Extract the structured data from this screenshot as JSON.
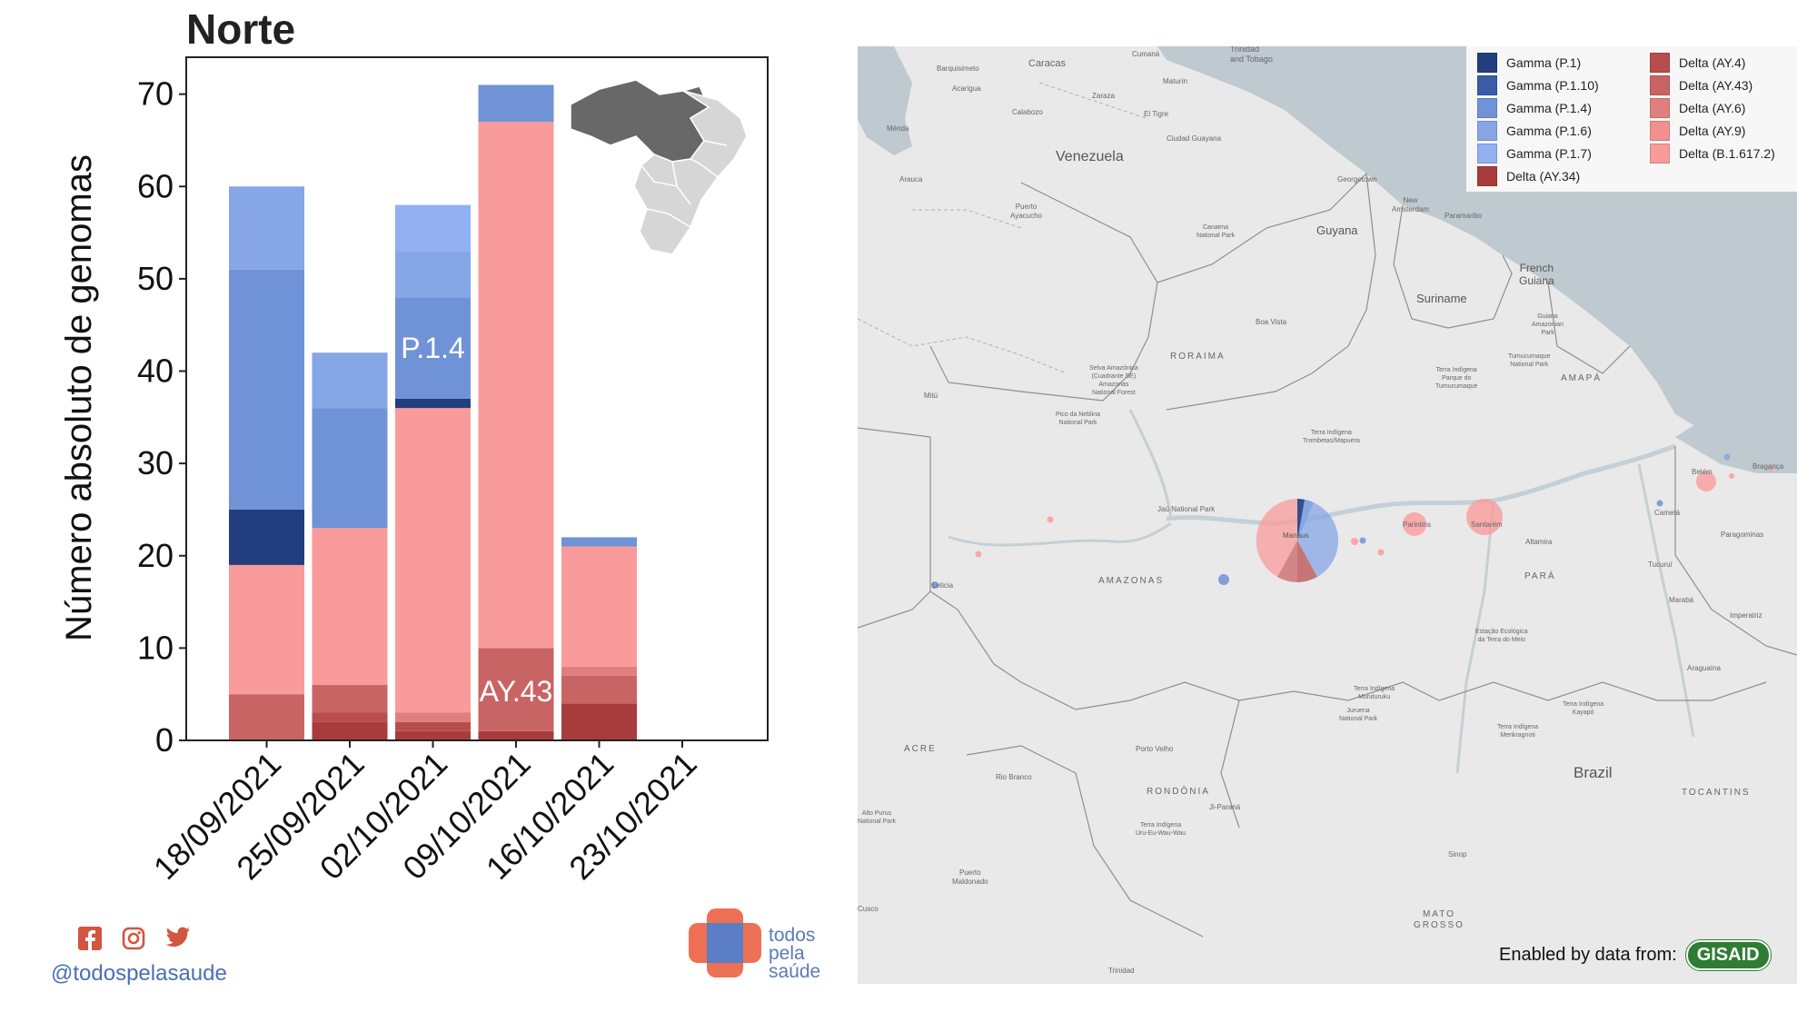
{
  "chart_data": {
    "type": "bar",
    "stacked": true,
    "title": "Norte",
    "ylabel": "Número absoluto de genomas",
    "xlabel": "",
    "ylim": [
      0,
      74
    ],
    "yticks": [
      0,
      10,
      20,
      30,
      40,
      50,
      60,
      70
    ],
    "categories": [
      "18/09/2021",
      "25/09/2021",
      "02/10/2021",
      "09/10/2021",
      "16/10/2021",
      "23/10/2021"
    ],
    "series": [
      {
        "name": "Delta (AY.34)",
        "color": "#a83c3c",
        "values": [
          0,
          2,
          1,
          1,
          4,
          0
        ]
      },
      {
        "name": "Delta (AY.4)",
        "color": "#b84d4d",
        "values": [
          0,
          1,
          1,
          0,
          0,
          0
        ]
      },
      {
        "name": "Delta (AY.43)",
        "color": "#c96464",
        "values": [
          5,
          3,
          0,
          9,
          3,
          0
        ]
      },
      {
        "name": "Delta (AY.6)",
        "color": "#e17f7f",
        "values": [
          0,
          0,
          1,
          0,
          1,
          0
        ]
      },
      {
        "name": "Delta (AY.9)",
        "color": "#f29090",
        "values": [
          0,
          0,
          0,
          0,
          0,
          0
        ]
      },
      {
        "name": "Delta (B.1.617.2)",
        "color": "#fa9b9b",
        "values": [
          14,
          17,
          33,
          57,
          13,
          0
        ]
      },
      {
        "name": "Gamma (P.1)",
        "color": "#233e7e",
        "values": [
          6,
          0,
          1,
          0,
          0,
          0
        ]
      },
      {
        "name": "Gamma (P.1.10)",
        "color": "#3a5ca8",
        "values": [
          0,
          0,
          0,
          0,
          0,
          0
        ]
      },
      {
        "name": "Gamma (P.1.4)",
        "color": "#7092d6",
        "values": [
          26,
          13,
          11,
          4,
          1,
          0
        ]
      },
      {
        "name": "Gamma (P.1.6)",
        "color": "#86a6e5",
        "values": [
          9,
          6,
          5,
          0,
          0,
          0
        ]
      },
      {
        "name": "Gamma (P.1.7)",
        "color": "#92b0f2",
        "values": [
          0,
          0,
          5,
          0,
          0,
          0
        ]
      }
    ],
    "annotations": [
      {
        "text": "P.1.4",
        "category": "02/10/2021",
        "y": 42.5
      },
      {
        "text": "AY.43",
        "category": "09/10/2021",
        "y": 5.3
      }
    ],
    "grid": false
  },
  "footer": {
    "handle": "@todospelasaude",
    "logo_lines": [
      "todos",
      "pela",
      "saúde"
    ],
    "social_icons": [
      "facebook-icon",
      "instagram-icon",
      "twitter-icon"
    ]
  },
  "map": {
    "legend": [
      {
        "label": "Gamma (P.1)",
        "color": "#233e7e"
      },
      {
        "label": "Gamma (P.1.10)",
        "color": "#3a5ca8"
      },
      {
        "label": "Gamma (P.1.4)",
        "color": "#7092d6"
      },
      {
        "label": "Gamma (P.1.6)",
        "color": "#86a6e5"
      },
      {
        "label": "Gamma (P.1.7)",
        "color": "#92b0f2"
      },
      {
        "label": "Delta (AY.34)",
        "color": "#a83c3c"
      },
      {
        "label": "Delta (AY.4)",
        "color": "#b84d4d"
      },
      {
        "label": "Delta (AY.43)",
        "color": "#c96464"
      },
      {
        "label": "Delta (AY.6)",
        "color": "#e17f7f"
      },
      {
        "label": "Delta (AY.9)",
        "color": "#f29090"
      },
      {
        "label": "Delta (B.1.617.2)",
        "color": "#fa9b9b"
      }
    ],
    "places": {
      "venezuela": "Venezuela",
      "guyana": "Guyana",
      "suriname": "Suriname",
      "french_guiana": "French\nGuiana",
      "brazil": "Brazil",
      "roraima": "RORAIMA",
      "amapa": "AMAPÁ",
      "amazonas": "AMAZONAS",
      "para": "PARÁ",
      "acre": "ACRE",
      "rondonia": "RONDÔNIA",
      "tocantins": "TOCANTINS",
      "mato_grosso": "MATO\nGROSSO",
      "caracas": "Caracas",
      "trinidad": "Trinidad\nand Tobago",
      "georgetown": "Georgetown",
      "boa_vista": "Boa Vista",
      "manaus": "Manaus",
      "santarem": "Santarém",
      "belem": "Belém",
      "porto_velho": "Porto Velho",
      "rio_branco": "Rio Branco",
      "altamira": "Altamira",
      "maturin": "Maturín",
      "cumana": "Cumaná",
      "barquisimeto": "Barquisimeto",
      "ciudad_guayana": "Ciudad Guayana",
      "paramaribo": "Paramaribo",
      "maraba": "Marabá",
      "imperatriz": "Imperatriz",
      "sinop": "Sinop",
      "ji_parana": "Ji-Paraná",
      "tucurui": "Tucuruí",
      "cameta": "Cametá",
      "braganca": "Bragança",
      "paragominas": "Paragominas",
      "araguaina": "Araguaína",
      "jau_park": "Jaú National Park",
      "pico_neblina": "Pico da Neblina\nNational Park",
      "trinidad_bo": "Trinidad",
      "cusco": "Cusco",
      "puerto_maldonado": "Puerto\nMaldonado",
      "leticia": "Leticia",
      "parintins": "Parintins",
      "puerto_ayacucho": "Puerto\nAyacucho",
      "el_tigre": "El Tigre",
      "calabozo": "Calabozo",
      "zaraza": "Zaraza",
      "acarigua": "Acarigua",
      "merida": "Mérida",
      "arauca": "Arauca",
      "mitu": "Mitú",
      "new_amsterdam": "New\nAmsterdam",
      "canaima": "Canaima\nNational Park",
      "trombetas": "Terra Indígena\nTrombetas/Mapuera",
      "tumucumaque": "Tumucumaque\nNational Park",
      "tumucumaque_ti": "Terra Indígena\nParque do\nTumucumaque",
      "guiana_park": "Guiana\nAmazonian\nPark",
      "terra_do_meio": "Estação Ecológica\nda Terra do Meio",
      "munduruku": "Terra Indígena\nMunduruku",
      "juruena": "Juruena\nNational Park",
      "kayapo": "Terra Indígena\nKayapó",
      "menkragnoti": "Terra Indígena\nMenkragnoti",
      "uru_eu": "Terra Indígena\nUru-Eu-Wau-Wau",
      "alto_purus": "Alto Purus\nNational Park",
      "selva": "Selva Amazónica\n(Cuadrante SE)\nAmazonas\nNational Forest"
    },
    "credit": "Enabled by data from:",
    "gisaid": "GISAID"
  }
}
